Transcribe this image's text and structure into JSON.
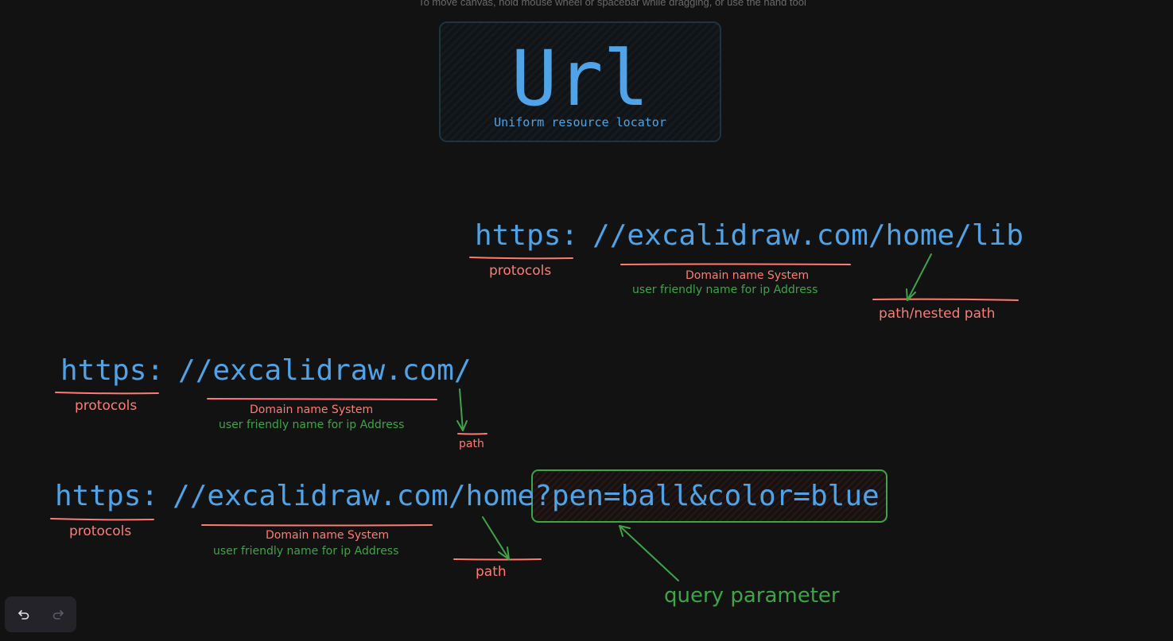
{
  "canvas": {
    "hint": "To move canvas, hold mouse wheel or spacebar while dragging, or use the hand tool"
  },
  "title_card": {
    "title": "Url",
    "subtitle": "Uniform resource locator"
  },
  "example1": {
    "protocol": "https:",
    "rest": "//excalidraw.com/home/lib",
    "protocols_label": "protocols",
    "dns_label": "Domain name System",
    "dns_note": "user friendly name for ip Address",
    "path_label": "path/nested path"
  },
  "example2": {
    "protocol": "https:",
    "rest": "//excalidraw.com/",
    "protocols_label": "protocols",
    "dns_label": "Domain name System",
    "dns_note": "user friendly name for ip Address",
    "path_label": "path"
  },
  "example3": {
    "protocol": "https:",
    "rest": "//excalidraw.com/home",
    "query": "?pen=ball&color=blue",
    "protocols_label": "protocols",
    "dns_label": "Domain name System",
    "dns_note": "user friendly name for ip Address",
    "path_label": "path",
    "query_label": "query parameter"
  },
  "toolbar": {
    "undo_icon": "undo-icon",
    "redo_icon": "redo-icon"
  },
  "colors": {
    "background": "#121212",
    "url_blue": "#4fa3e6",
    "annotation_red": "#ff7b73",
    "annotation_green": "#3fa348"
  }
}
